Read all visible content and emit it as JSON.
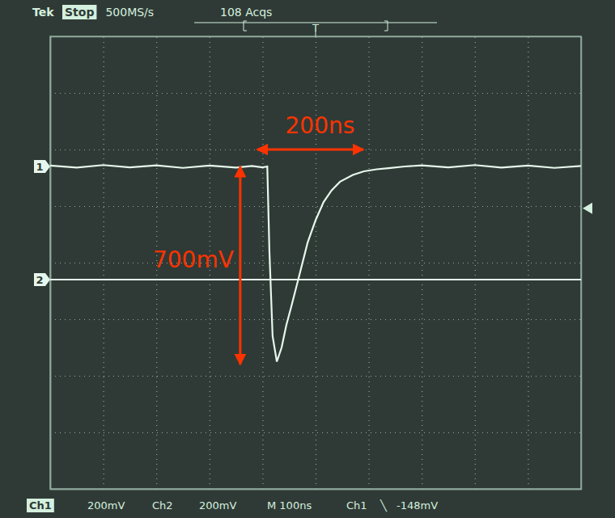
{
  "chart_data": {
    "type": "line",
    "header": {
      "brand": "Tek",
      "status": "Stop",
      "sample_rate": "500MS/s",
      "acquisitions": "108 Acqs",
      "trigger_label": "T"
    },
    "footer": [
      "Ch1",
      "200mV",
      "Ch2",
      "200mV",
      "M 100ns",
      "Ch1",
      "╲",
      "-148mV"
    ],
    "xlim": [
      0,
      1000
    ],
    "xticks": [
      0,
      100,
      200,
      300,
      400,
      500,
      600,
      700,
      800,
      900,
      1000
    ],
    "ylim": [
      -1140,
      460
    ],
    "yticks": [
      -1140,
      -940,
      -740,
      -540,
      -340,
      -140,
      60,
      260,
      460
    ],
    "grid": true,
    "tick_labels": false,
    "trigger_time": 500,
    "trigger_level": -148,
    "series": [
      {
        "name": "1",
        "color": "#e6f7ec",
        "ground": 0,
        "x": [
          0,
          50,
          100,
          150,
          200,
          250,
          300,
          350,
          380,
          400,
          409,
          413,
          419,
          427,
          436,
          445,
          454,
          470,
          485,
          500,
          515,
          530,
          546,
          570,
          591,
          615,
          637,
          668,
          700,
          750,
          800,
          850,
          900,
          950,
          1000
        ],
        "values": [
          3,
          -4,
          5,
          -3,
          4,
          -5,
          3,
          -4,
          2,
          -3,
          0,
          -300,
          -600,
          -690,
          -640,
          -560,
          -497,
          -380,
          -269,
          -190,
          -126,
          -85,
          -54,
          -30,
          -17,
          -10,
          -6,
          0,
          4,
          -3,
          5,
          -4,
          3,
          -5,
          2
        ]
      },
      {
        "name": "2",
        "color": "#e6f7ec",
        "ground": -400,
        "x": [
          0,
          1000
        ],
        "values": [
          -400,
          -400
        ]
      }
    ],
    "annotations": [
      {
        "text": "200ns",
        "x": [
          390,
          590
        ],
        "y": [
          60,
          60
        ]
      },
      {
        "text": "700mV",
        "x": [
          358,
          358
        ],
        "y": [
          0,
          -700
        ]
      }
    ]
  }
}
